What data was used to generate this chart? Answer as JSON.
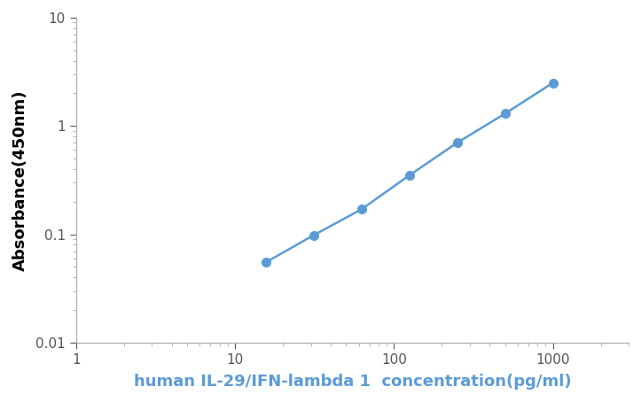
{
  "x": [
    15.6,
    31.2,
    62.5,
    125,
    250,
    500,
    1000
  ],
  "y": [
    0.055,
    0.098,
    0.17,
    0.35,
    0.7,
    1.3,
    2.5
  ],
  "line_color": "#5B9BD5",
  "marker_color": "#5B9BD5",
  "marker_style": "o",
  "marker_size": 7,
  "line_width": 1.8,
  "xlabel": "human IL-29/IFN-lambda 1  concentration(pg/ml)",
  "ylabel": "Absorbance(450nm)",
  "xlim": [
    1,
    3000
  ],
  "ylim": [
    0.01,
    10
  ],
  "xlabel_color": "#5B9BD5",
  "ylabel_color": "#000000",
  "xlabel_fontsize": 13,
  "ylabel_fontsize": 13,
  "tick_fontsize": 11,
  "background_color": "#ffffff"
}
